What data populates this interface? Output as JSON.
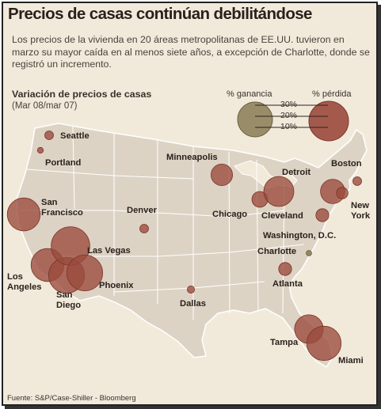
{
  "header": {
    "title": "Precios de casas continúan debilitándose",
    "subtitle": "Los precios de la vivienda en 20 áreas metropolitanas de EE.UU. tuvieron en marzo su mayor caída en al menos siete años, a excepción de Charlotte, donde se registró un incremento."
  },
  "chart": {
    "title": "Variación de precios de casas",
    "period": "(Mar 08/mar 07)"
  },
  "legend": {
    "gain_label": "% ganancia",
    "loss_label": "% pérdida",
    "levels": [
      "30%",
      "20%",
      "10%"
    ]
  },
  "colors": {
    "loss": "#9a4a3c",
    "gain": "#8a7c55",
    "land": "#ddd3c4",
    "background": "#f1eadb"
  },
  "cities": [
    {
      "id": "seattle",
      "name": "Seattle",
      "change_pct": -5
    },
    {
      "id": "portland",
      "name": "Portland",
      "change_pct": -3
    },
    {
      "id": "san-francisco",
      "name": "San Francisco",
      "change_pct": -22
    },
    {
      "id": "los-angeles",
      "name": "Los Angeles",
      "change_pct": -22
    },
    {
      "id": "san-diego",
      "name": "San Diego",
      "change_pct": -24
    },
    {
      "id": "las-vegas",
      "name": "Las Vegas",
      "change_pct": -26
    },
    {
      "id": "phoenix",
      "name": "Phoenix",
      "change_pct": -24
    },
    {
      "id": "denver",
      "name": "Denver",
      "change_pct": -5
    },
    {
      "id": "minneapolis",
      "name": "Minneapolis",
      "change_pct": -14
    },
    {
      "id": "dallas",
      "name": "Dallas",
      "change_pct": -4
    },
    {
      "id": "chicago",
      "name": "Chicago",
      "change_pct": -10
    },
    {
      "id": "detroit",
      "name": "Detroit",
      "change_pct": -20
    },
    {
      "id": "cleveland",
      "name": "Cleveland",
      "change_pct": -8
    },
    {
      "id": "atlanta",
      "name": "Atlanta",
      "change_pct": -8
    },
    {
      "id": "charlotte",
      "name": "Charlotte",
      "change_pct": 1
    },
    {
      "id": "washington-dc",
      "name": "Washington, D.C.",
      "change_pct": -16
    },
    {
      "id": "new-york",
      "name": "New York",
      "change_pct": -7
    },
    {
      "id": "boston",
      "name": "Boston",
      "change_pct": -5
    },
    {
      "id": "tampa",
      "name": "Tampa",
      "change_pct": -19
    },
    {
      "id": "miami",
      "name": "Miami",
      "change_pct": -23
    }
  ],
  "source": "Fuente: S&P/Case-Shiller - Bloomberg"
}
